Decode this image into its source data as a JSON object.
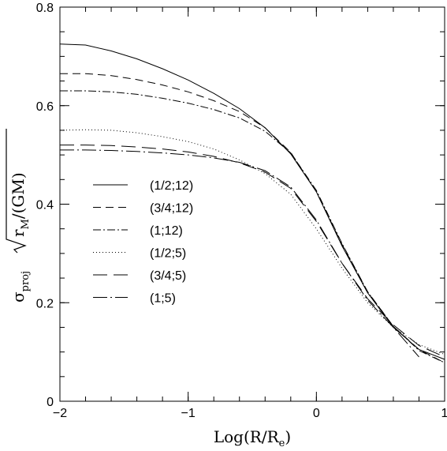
{
  "chart_data": {
    "type": "line",
    "xlabel": "Log(R/R",
    "xlabel_sub": "e",
    "xlabel_close": ")",
    "ylabel": {
      "sigma": "σ",
      "sigma_sub": "proj",
      "r": "r",
      "r_sub": "M",
      "gm": "/(GM)"
    },
    "xlim": [
      -2,
      1
    ],
    "ylim": [
      0,
      0.8
    ],
    "xticks": [
      -2,
      -1,
      0,
      1
    ],
    "xtick_labels": [
      "−2",
      "−1",
      "0",
      "1"
    ],
    "yticks": [
      0,
      0.2,
      0.4,
      0.6,
      0.8
    ],
    "ytick_labels": [
      "0",
      "0.2",
      "0.4",
      "0.6",
      "0.8"
    ],
    "grid": false,
    "legend_position": "center-left",
    "series": [
      {
        "name": "(1/2;12)",
        "dash": "solid",
        "x": [
          -2.0,
          -1.8,
          -1.6,
          -1.4,
          -1.2,
          -1.0,
          -0.8,
          -0.6,
          -0.4,
          -0.2,
          0.0,
          0.2,
          0.4,
          0.6,
          0.8,
          1.0
        ],
        "y": [
          0.725,
          0.723,
          0.711,
          0.695,
          0.675,
          0.652,
          0.625,
          0.594,
          0.555,
          0.502,
          0.425,
          0.315,
          0.22,
          0.15,
          0.105,
          0.085
        ]
      },
      {
        "name": "(3/4;12)",
        "dash": "10,6",
        "x": [
          -2.0,
          -1.8,
          -1.6,
          -1.4,
          -1.2,
          -1.0,
          -0.8,
          -0.6,
          -0.4,
          -0.2,
          0.0,
          0.2,
          0.4,
          0.6,
          0.8,
          1.0
        ],
        "y": [
          0.665,
          0.665,
          0.661,
          0.653,
          0.642,
          0.628,
          0.61,
          0.588,
          0.555,
          0.505,
          0.425,
          0.318,
          0.222,
          0.152,
          0.105,
          0.078
        ]
      },
      {
        "name": "(1;12)",
        "dash": "10,3,2,3",
        "x": [
          -2.0,
          -1.8,
          -1.6,
          -1.4,
          -1.2,
          -1.0,
          -0.8,
          -0.6,
          -0.4,
          -0.2,
          0.0,
          0.2,
          0.4,
          0.6,
          0.8,
          1.0
        ],
        "y": [
          0.63,
          0.63,
          0.628,
          0.623,
          0.615,
          0.605,
          0.592,
          0.575,
          0.548,
          0.504,
          0.428,
          0.32,
          0.222,
          0.152,
          0.103,
          0.078
        ]
      },
      {
        "name": "(1/2;5)",
        "dash": "1,3",
        "x": [
          -2.0,
          -1.8,
          -1.6,
          -1.4,
          -1.2,
          -1.0,
          -0.8,
          -0.6,
          -0.4,
          -0.2,
          0.0,
          0.2,
          0.4,
          0.6,
          0.8,
          1.0
        ],
        "y": [
          0.55,
          0.551,
          0.55,
          0.545,
          0.537,
          0.527,
          0.512,
          0.49,
          0.462,
          0.42,
          0.35,
          0.27,
          0.2,
          0.15,
          0.115,
          0.095
        ]
      },
      {
        "name": "(3/4;5)",
        "dash": "18,8",
        "x": [
          -2.0,
          -1.8,
          -1.6,
          -1.4,
          -1.2,
          -1.0,
          -0.8,
          -0.6,
          -0.4,
          -0.2,
          0.0,
          0.2,
          0.4,
          0.6,
          0.8,
          1.0
        ],
        "y": [
          0.52,
          0.52,
          0.519,
          0.516,
          0.512,
          0.506,
          0.497,
          0.484,
          0.465,
          0.432,
          0.365,
          0.28,
          0.208,
          0.155,
          0.113,
          0.09
        ]
      },
      {
        "name": "(1;5)",
        "dash": "18,4,2,4",
        "x": [
          -2.0,
          -1.8,
          -1.6,
          -1.4,
          -1.2,
          -1.0,
          -0.8,
          -0.6,
          -0.4,
          -0.2,
          0.0,
          0.2,
          0.4,
          0.6,
          0.8
        ],
        "y": [
          0.51,
          0.51,
          0.509,
          0.507,
          0.504,
          0.5,
          0.494,
          0.485,
          0.468,
          0.435,
          0.368,
          0.28,
          0.205,
          0.15,
          0.09
        ]
      }
    ]
  }
}
